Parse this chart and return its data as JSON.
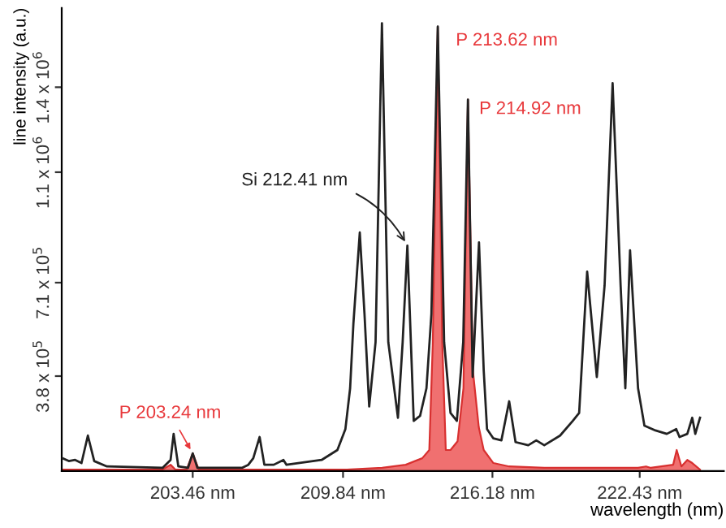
{
  "chart_data": {
    "type": "line",
    "xlabel": "wavelength (nm)",
    "ylabel": "line intensity (a.u.)",
    "xlim": [
      197.9,
      226.0
    ],
    "ylim": [
      45000,
      1680000
    ],
    "xticks": [
      {
        "value": 203.46,
        "label": "203.46 nm"
      },
      {
        "value": 209.84,
        "label": "209.84 nm"
      },
      {
        "value": 216.18,
        "label": "216.18 nm"
      },
      {
        "value": 222.43,
        "label": "222.43 nm"
      }
    ],
    "yticks": [
      {
        "value": 380000,
        "label": "3.8 x 10$^{5}$"
      },
      {
        "value": 710000,
        "label": "7.1 x 10$^{5}$"
      },
      {
        "value": 1100000,
        "label": "1.1 x 10$^{6}$"
      },
      {
        "value": 1400000,
        "label": "1.4 x 10$^{6}$"
      }
    ],
    "grid": false,
    "legend": false,
    "marker": "none",
    "line_style": "solid",
    "series": [
      {
        "color": "#222222",
        "x": [
          197.93,
          198.2,
          198.47,
          198.74,
          199.01,
          199.28,
          199.82,
          202.18,
          202.52,
          202.65,
          202.85,
          203.26,
          203.46,
          203.66,
          205.55,
          205.82,
          206.03,
          206.3,
          206.5,
          206.9,
          207.31,
          207.44,
          208.93,
          209.6,
          209.94,
          210.14,
          210.28,
          210.55,
          210.75,
          210.95,
          211.22,
          211.49,
          211.76,
          212.17,
          212.37,
          212.57,
          212.84,
          213.11,
          213.38,
          213.59,
          213.86,
          214.13,
          214.4,
          214.67,
          214.94,
          215.14,
          215.34,
          215.61,
          215.81,
          215.95,
          216.22,
          216.56,
          216.89,
          217.16,
          217.7,
          218.04,
          218.38,
          219.05,
          219.59,
          219.86,
          220.2,
          220.61,
          220.94,
          221.28,
          221.62,
          221.82,
          222.02,
          222.36,
          222.63,
          223.1,
          223.58,
          223.98,
          224.12,
          224.45,
          224.66,
          224.79,
          224.99
        ],
        "values": [
          90000,
          80000,
          84000,
          73000,
          170000,
          80000,
          61000,
          56000,
          84000,
          176000,
          61000,
          56000,
          107000,
          56000,
          56000,
          67000,
          90000,
          165000,
          67000,
          67000,
          84000,
          67000,
          84000,
          119000,
          193000,
          337000,
          566000,
          887000,
          600000,
          273000,
          500000,
          1626000,
          500000,
          233000,
          500000,
          841000,
          222000,
          240000,
          337000,
          600000,
          1614000,
          500000,
          250000,
          222000,
          500000,
          1356000,
          377000,
          852000,
          400000,
          193000,
          160000,
          153000,
          291000,
          147000,
          136000,
          153000,
          136000,
          170000,
          222000,
          250000,
          749000,
          377000,
          700000,
          1414000,
          700000,
          337000,
          824000,
          337000,
          205000,
          188000,
          176000,
          193000,
          165000,
          176000,
          233000,
          176000,
          233000
        ]
      },
      {
        "type": "area",
        "color": "#f07070",
        "x": [
          197.93,
          202.18,
          202.52,
          202.72,
          203.2,
          203.46,
          203.72,
          210.0,
          211.5,
          212.5,
          213.2,
          213.5,
          213.65,
          213.86,
          214.05,
          214.2,
          214.4,
          214.7,
          214.95,
          215.14,
          215.35,
          215.6,
          215.81,
          216.22,
          216.89,
          218.38,
          222.36,
          222.7,
          222.9,
          223.85,
          224.0,
          224.2,
          224.45,
          224.66,
          224.99
        ],
        "values": [
          50000,
          50000,
          67000,
          50000,
          50000,
          107000,
          50000,
          50000,
          56000,
          67000,
          90000,
          119000,
          500000,
          1614000,
          500000,
          119000,
          119000,
          150000,
          337000,
          1356000,
          400000,
          200000,
          119000,
          73000,
          61000,
          56000,
          56000,
          61000,
          56000,
          67000,
          119000,
          61000,
          84000,
          73000,
          50000
        ]
      }
    ],
    "annotations": [
      {
        "text": "P 213.62 nm",
        "x": 213.86,
        "y": 1614000
      },
      {
        "text": "P 214.92 nm",
        "x": 215.14,
        "y": 1356000
      },
      {
        "text": "Si 212.41 nm",
        "x": 212.57,
        "y": 841000
      },
      {
        "text": "P 203.24 nm",
        "x": 203.46,
        "y": 107000
      }
    ]
  }
}
